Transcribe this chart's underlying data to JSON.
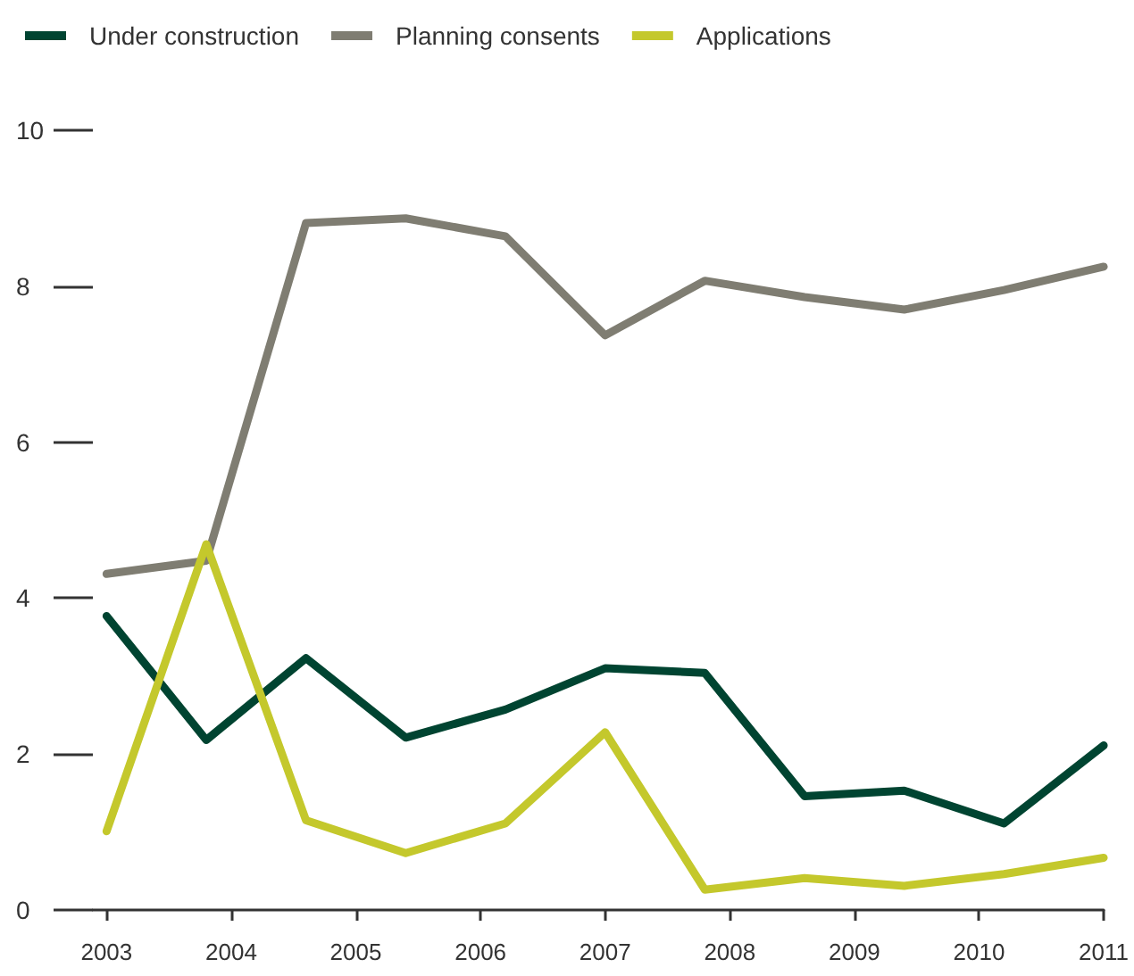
{
  "chart_data": {
    "type": "line",
    "x": [
      2003,
      2003.8,
      2004.6,
      2005.4,
      2006.2,
      2007,
      2007.8,
      2008.6,
      2009.4,
      2010.2,
      2011
    ],
    "series": [
      {
        "name": "Under construction",
        "color": "#004431",
        "values": [
          3.77,
          2.18,
          3.23,
          2.21,
          2.57,
          3.1,
          3.04,
          1.46,
          1.53,
          1.11,
          2.11
        ]
      },
      {
        "name": "Planning consents",
        "color": "#7f7d72",
        "values": [
          4.31,
          4.48,
          8.81,
          8.87,
          8.64,
          7.37,
          8.07,
          7.86,
          7.7,
          7.95,
          8.25
        ]
      },
      {
        "name": "Applications",
        "color": "#c4c82c",
        "values": [
          1.01,
          4.69,
          1.15,
          0.73,
          1.11,
          2.28,
          0.26,
          0.41,
          0.31,
          0.46,
          0.67
        ]
      }
    ],
    "xlim": [
      2002.89,
      2011
    ],
    "xticks": [
      2003,
      2004,
      2005,
      2006,
      2007,
      2008,
      2009,
      2010,
      2011
    ],
    "ylim": [
      0,
      10
    ],
    "yticks": [
      0,
      2,
      4,
      6,
      8,
      10
    ],
    "grid": false,
    "legend": "top left",
    "marker": "none",
    "line_style": "solid"
  }
}
